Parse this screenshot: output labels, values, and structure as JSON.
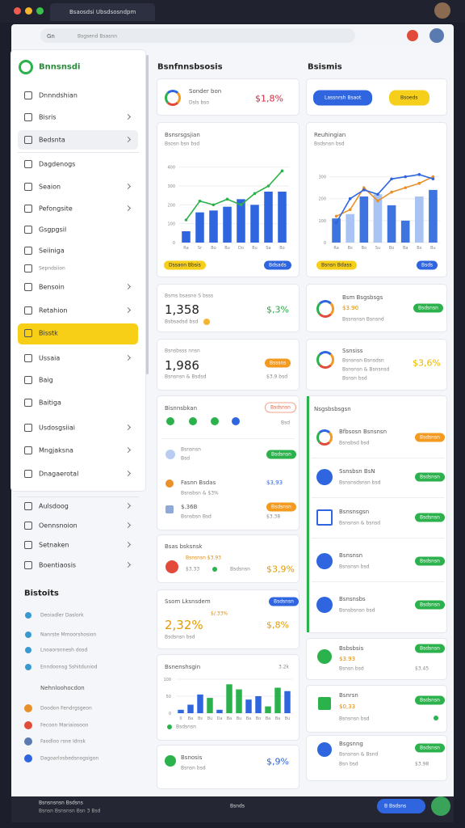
{
  "browser": {
    "tab": "Bsaosdsi Ubsdsosndpm",
    "address_prefix": "Gn",
    "address": "Bsgsend Bsasnn"
  },
  "sidebar": {
    "brand": "Bnnsnsdi",
    "items": [
      "Dnnndshian",
      "Bisris",
      "Bedsnta",
      "Dagdenogs",
      "Seaion",
      "Pefongsite",
      "Gsgpgsil",
      "Seiiniga",
      "Sepndsiion",
      "Bensoin",
      "Retahion",
      "Bisstk",
      "Ussaia",
      "Baig",
      "Baitiga",
      "Usdosgsiiai",
      "Mngjaksna",
      "Dnagaerotal",
      "Aulsdoog",
      "Oennsnoion",
      "Setnaken",
      "Boentiaosis"
    ],
    "section_title": "Bistoits",
    "section_items": [
      "Deoiadler Daslork",
      "Nanrste Mmoorshosion",
      "Lnoaorsnnesh dosd",
      "Enndoonsg Sshitduniod"
    ],
    "group_title": "Nehnloohocdon",
    "group_items": [
      "Doodon Fendrgsgeon",
      "Fecoon Mariaiosoon",
      "Faodloo rsne Idnsk",
      "Dagoarlosbedsnogsigon"
    ]
  },
  "header": {
    "left": "Bsnfnnsbsosis",
    "right": "Bsismis"
  },
  "summary": {
    "title": "Sonder bon",
    "subtitle": "Dsls bso",
    "value": "$1,8%"
  },
  "actions": {
    "primary": "Lassnrsh Bsaot",
    "secondary": "Bsoeds"
  },
  "chart_left": {
    "type": "bar",
    "title": "Bsnsrsgsjian",
    "subtitle": "Bsosn bsn bsd",
    "categories": [
      "Ra",
      "Sr",
      "Bo",
      "Bu",
      "Do",
      "Bu",
      "Sa",
      "Bo"
    ],
    "ylim": [
      0,
      450
    ],
    "yticks": [
      0,
      100,
      200,
      300,
      400
    ],
    "series": [
      {
        "color": "#2f66e0",
        "values": [
          60,
          160,
          170,
          190,
          230,
          200,
          270,
          270
        ]
      },
      {
        "type": "line",
        "color": "#2bb24c",
        "values": [
          120,
          220,
          200,
          230,
          200,
          260,
          300,
          380
        ]
      }
    ],
    "footer_left": "Dssaon Bbsis",
    "footer_right": "Bdsads"
  },
  "chart_right": {
    "type": "bar",
    "title": "Reuhingian",
    "subtitle": "Bsdsnsn bsd",
    "categories": [
      "Ra",
      "Bs",
      "Bo",
      "Su",
      "Bo",
      "Ba",
      "Bs",
      "Bu"
    ],
    "ylim": [
      0,
      350
    ],
    "yticks": [
      0,
      100,
      200,
      300
    ],
    "series": [
      {
        "colors": [
          "#3e74e0",
          "#a9c3f2",
          "#3e74e0",
          "#a9c3f2",
          "#3e74e0",
          "#3e74e0",
          "#a9c3f2",
          "#3e74e0"
        ],
        "values": [
          110,
          130,
          210,
          220,
          170,
          100,
          210,
          240
        ]
      },
      {
        "type": "line",
        "color": "#e8902a",
        "values": [
          120,
          150,
          250,
          190,
          230,
          250,
          270,
          300
        ]
      },
      {
        "type": "line",
        "color": "#2f66e0",
        "values": [
          90,
          200,
          240,
          220,
          290,
          300,
          310,
          290
        ]
      }
    ],
    "footer_left": "Bsnsn Bdass",
    "footer_right": "Bsds"
  },
  "stat_one": {
    "label": "Bsms bsasno S bsss",
    "value": "1,358",
    "change": "$,3%",
    "note": "Bsbsadsd bsd"
  },
  "stat_two": {
    "label": "Bsnsbsss nnsn",
    "value": "1,986",
    "badge": "Bsssns",
    "note": "Bsnsnsn & Bsdsd",
    "extra": "$3.9 bsd"
  },
  "activity": {
    "title": "Bisnnsbkan",
    "badge": "Bsdsnsn",
    "count": "Bsd",
    "rows": [
      {
        "title": "Bsnsnsn",
        "subtitle": "Bsd",
        "badge": "Bsdsnsn"
      },
      {
        "title": "Fasnn Bsdas",
        "subtitle": "Bsnsbsn & $3%",
        "value": "$3,93"
      },
      {
        "title": "$.36B",
        "subtitle": "Bsnsbsn Bsd",
        "badge": "Bsdsnsn",
        "value": "$3.38"
      }
    ]
  },
  "stat_three": {
    "label": "Bsas bsksnsk",
    "line1": "Bsnsnsn $3.93",
    "line2": "$3.33",
    "tag": "Bsdsnsn",
    "change": "$3,9%"
  },
  "stat_four": {
    "label": "Ssom Lksnsdem",
    "badge": "Bsdsnsn",
    "value": "2,32%",
    "delta": "$/.33%",
    "change": "$,8%",
    "note": "Bsdsnsn bsd"
  },
  "chart_small": {
    "type": "bar",
    "title": "Bsnenshsgin",
    "note": "3.2k",
    "categories": [
      "0",
      "Ba",
      "Bs",
      "Bu",
      "Da",
      "Ba",
      "Bu",
      "Ba",
      "Bo",
      "Ba",
      "Ba",
      "Bu"
    ],
    "ylim": [
      0,
      100
    ],
    "yticks": [
      0,
      50,
      100
    ],
    "series": [
      {
        "colors": [
          "#2f66e0",
          "#2f66e0",
          "#2f66e0",
          "#2bb24c",
          "#2f66e0",
          "#2bb24c",
          "#2bb24c",
          "#2f66e0",
          "#2f66e0",
          "#2bb24c",
          "#2bb24c",
          "#2f66e0"
        ],
        "values": [
          10,
          25,
          55,
          45,
          10,
          85,
          70,
          40,
          50,
          20,
          75,
          65
        ]
      }
    ],
    "footer": "Bsdsnsn"
  },
  "stat_five": {
    "title": "Bsnosis",
    "subtitle": "Bsnsn bsd",
    "change": "$,9%"
  },
  "ring_one": {
    "title": "Bsm Bsgsbsgs",
    "value": "$3.90",
    "badge": "Bsdsnsn",
    "note": "Bssnsnsn Bsnsnd"
  },
  "ring_two": {
    "title": "Ssnsiss",
    "line1": "Bsnsnsn Bsnsdsn",
    "line2": "Bsnsnsn & Bsnsnsd",
    "line3": "Bsnsn bsd",
    "change": "$3,6%"
  },
  "panel": {
    "title": "Nsgsbsbsgsn",
    "items": [
      {
        "title": "Bfbsosn Bsnsnsn",
        "subtitle": "Bsnsbsd bsd",
        "badge": "Bsdsnsn"
      },
      {
        "title": "Ssnsbsn BsN",
        "subtitle": "Bsnsnsdsnsn bsd",
        "badge": "Bsdsnsn"
      },
      {
        "title": "Bsnsnsgsn",
        "subtitle": "Bsnsnsn & bsnsd",
        "badge": "Bsdsnsn"
      },
      {
        "title": "Bsnsnsn",
        "subtitle": "Bsnsnsn bsd",
        "badge": "Bsdsnsn"
      },
      {
        "title": "Bsnsnsbs",
        "subtitle": "Bsnsbsnsn bsd",
        "badge": "Bsdsnsn"
      }
    ]
  },
  "tile_one": {
    "title": "Bsbsbsis",
    "value": "$3.93",
    "badge": "Bsdsnsn",
    "note": "Bsnsn bsd",
    "extra": "$3.45"
  },
  "tile_two": {
    "title": "Bsnrsn",
    "value": "$0,33",
    "badge": "Bsdsnsn",
    "note": "Bsnsnsn bsd"
  },
  "tile_three": {
    "title": "Bsgsnng",
    "line1": "Bsnsnsn & Bsnd",
    "line2": "Bsn bsd",
    "badge": "Bsdsnsn",
    "value": "$3.98"
  },
  "taskbar": {
    "title": "Bsnsnsnsn Bsdsns",
    "subtitle": "Bsnsn Bsnsnsn Bsn 3 Bsd",
    "search": "Bsnds",
    "button": "B Bsdsns"
  }
}
